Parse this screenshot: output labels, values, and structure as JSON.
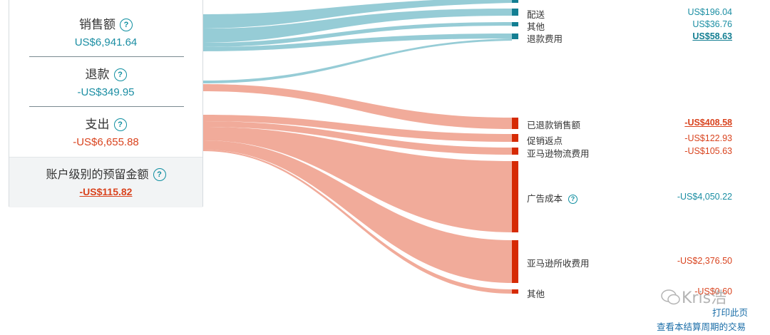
{
  "summary": {
    "sales": {
      "label": "销售额",
      "value": "US$6,941.64"
    },
    "refunds": {
      "label": "退款",
      "value": "-US$349.95"
    },
    "expenses": {
      "label": "支出",
      "value": "-US$6,655.88"
    },
    "reserve": {
      "label": "账户级别的预留金额",
      "value": "-US$115.82"
    }
  },
  "help_glyph": "?",
  "items": [
    {
      "label": "配送",
      "amount": "US$196.04"
    },
    {
      "label": "其他",
      "amount": "US$36.76"
    },
    {
      "label": "退款费用",
      "amount": "US$58.63"
    },
    {
      "label": "已退款销售额",
      "amount": "-US$408.58"
    },
    {
      "label": "促销返点",
      "amount": "-US$122.93"
    },
    {
      "label": "亚马逊物流费用",
      "amount": "-US$105.63"
    },
    {
      "label": "广告成本",
      "amount": "-US$4,050.22"
    },
    {
      "label": "亚马逊所收费用",
      "amount": "-US$2,376.50"
    },
    {
      "label": "其他",
      "amount": "-US$0.60"
    }
  ],
  "links": {
    "print": "打印此页",
    "view_transactions": "查看本结算周期的交易"
  },
  "watermark": "Kris浩",
  "colors": {
    "teal_flow": "#96ccd6",
    "red_flow": "#f1ab9a",
    "teal_mark": "#137e92",
    "red_mark": "#d62a04",
    "teal_text": "#1b8ea3",
    "red_text": "#d9431e"
  }
}
